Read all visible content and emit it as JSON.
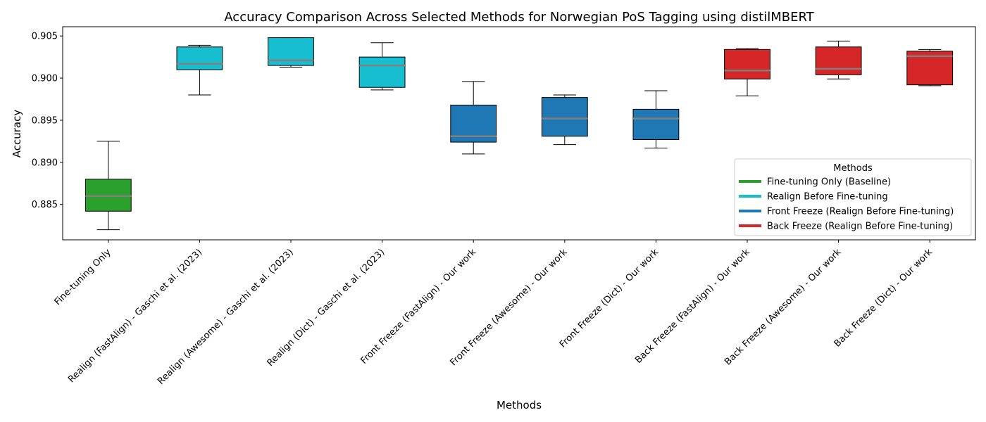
{
  "chart_data": {
    "type": "box",
    "title": "Accuracy Comparison Across Selected Methods for Norwegian PoS Tagging using distilMBERT",
    "xlabel": "Methods",
    "ylabel": "Accuracy",
    "ylim": [
      0.8808,
      0.9061
    ],
    "yticks": [
      "0.885",
      "0.890",
      "0.895",
      "0.900",
      "0.905"
    ],
    "ytick_values": [
      0.885,
      0.89,
      0.895,
      0.9,
      0.905
    ],
    "grid": false,
    "legend": {
      "title": "Methods",
      "placement": "lower-right",
      "entries": [
        {
          "label": "Fine-tuning Only (Baseline)",
          "color": "#2ca02c"
        },
        {
          "label": "Realign Before Fine-tuning",
          "color": "#17becf"
        },
        {
          "label": "Front Freeze (Realign Before Fine-tuning)",
          "color": "#1f77b4"
        },
        {
          "label": "Back Freeze (Realign Before Fine-tuning)",
          "color": "#d62728"
        }
      ]
    },
    "median_color": "#808080",
    "categories": [
      "Fine-tuning Only",
      "Realign (FastAlign) - Gaschi et al. (2023)",
      "Realign (Awesome) - Gaschi et al. (2023)",
      "Realign (Dict) - Gaschi et al. (2023)",
      "Front Freeze (FastAlign) - Our work",
      "Front Freeze (Awesome) - Our work",
      "Front Freeze (Dict) - Our work",
      "Back Freeze (FastAlign) - Our work",
      "Back Freeze (Awesome) - Our work",
      "Back Freeze (Dict) - Our work"
    ],
    "boxes": [
      {
        "min": 0.882,
        "q1": 0.8842,
        "median": 0.886,
        "q3": 0.888,
        "max": 0.8925,
        "color": "#2ca02c"
      },
      {
        "min": 0.898,
        "q1": 0.901,
        "median": 0.9017,
        "q3": 0.9037,
        "max": 0.9039,
        "color": "#17becf"
      },
      {
        "min": 0.9013,
        "q1": 0.9015,
        "median": 0.9021,
        "q3": 0.9048,
        "max": 0.9048,
        "color": "#17becf"
      },
      {
        "min": 0.8986,
        "q1": 0.8989,
        "median": 0.9015,
        "q3": 0.9025,
        "max": 0.9042,
        "color": "#17becf"
      },
      {
        "min": 0.891,
        "q1": 0.8924,
        "median": 0.8931,
        "q3": 0.8968,
        "max": 0.8996,
        "color": "#1f77b4"
      },
      {
        "min": 0.8921,
        "q1": 0.8931,
        "median": 0.8952,
        "q3": 0.8977,
        "max": 0.898,
        "color": "#1f77b4"
      },
      {
        "min": 0.8917,
        "q1": 0.8927,
        "median": 0.8952,
        "q3": 0.8963,
        "max": 0.8985,
        "color": "#1f77b4"
      },
      {
        "min": 0.8979,
        "q1": 0.8999,
        "median": 0.9009,
        "q3": 0.9034,
        "max": 0.9035,
        "color": "#d62728"
      },
      {
        "min": 0.8999,
        "q1": 0.9004,
        "median": 0.9011,
        "q3": 0.9037,
        "max": 0.9044,
        "color": "#d62728"
      },
      {
        "min": 0.8991,
        "q1": 0.8992,
        "median": 0.9026,
        "q3": 0.9032,
        "max": 0.9034,
        "color": "#d62728"
      }
    ]
  }
}
